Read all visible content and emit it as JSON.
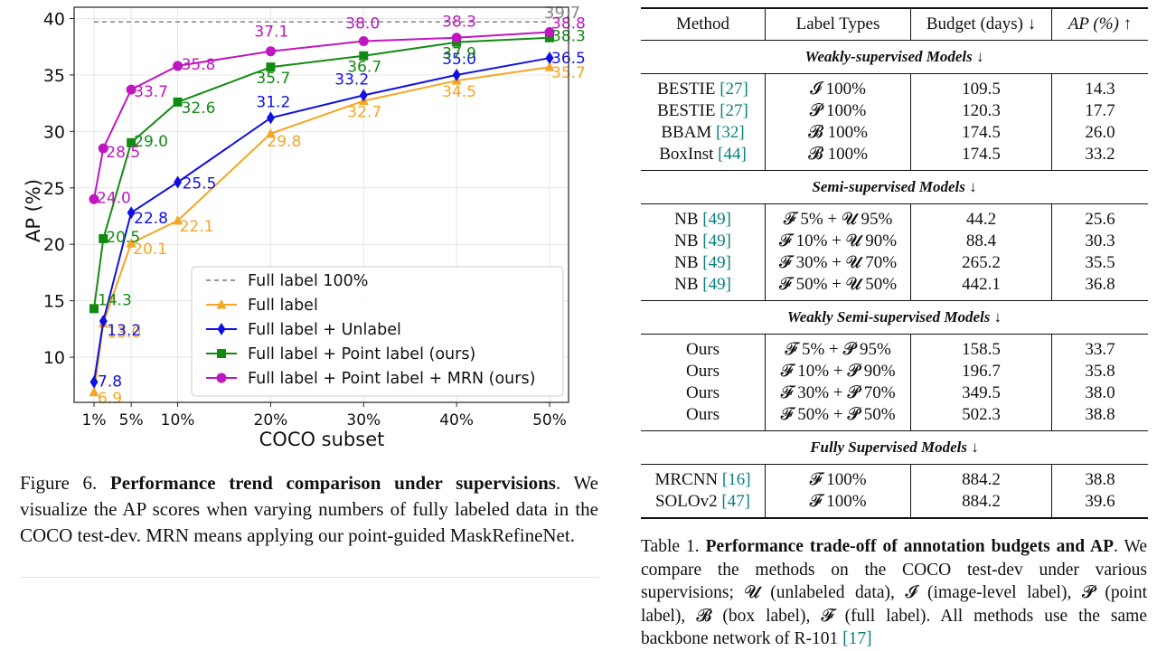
{
  "chart_data": {
    "type": "line",
    "xlabel": "COCO subset",
    "ylabel": "AP (%)",
    "x_ticks": [
      "1%",
      "5%",
      "10%",
      "20%",
      "30%",
      "40%",
      "50%"
    ],
    "x": [
      1,
      5,
      10,
      20,
      30,
      40,
      50
    ],
    "ylim": [
      6,
      41
    ],
    "y_ticks": [
      10,
      15,
      20,
      25,
      30,
      35,
      40
    ],
    "grid": true,
    "legend_position": "bottom-right",
    "reference_line": {
      "name": "Full label 100%",
      "value": 39.7,
      "label": "39.7",
      "color": "#777777"
    },
    "series": [
      {
        "name": "Full label",
        "color": "#f5a623",
        "marker": "triangle",
        "values": [
          6.9,
          20.1,
          22.1,
          29.8,
          32.7,
          34.5,
          35.7
        ],
        "labels": [
          "6.9",
          "20.1",
          "22.1",
          "29.8",
          "32.7",
          "34.5",
          "35.7"
        ]
      },
      {
        "name": "Full label + Unlabel",
        "color": "#1010e0",
        "marker": "diamond",
        "values": [
          7.8,
          22.8,
          25.5,
          31.2,
          33.2,
          35.0,
          36.5
        ],
        "labels": [
          "7.8",
          "22.8",
          "25.5",
          "31.2",
          "33.2",
          "35.0",
          "36.5"
        ]
      },
      {
        "name": "Full label + Point label (ours)",
        "color": "#128a12",
        "marker": "square",
        "values": [
          14.3,
          29.0,
          32.6,
          35.7,
          36.7,
          37.9,
          38.3
        ],
        "labels": [
          "14.3",
          "29.0",
          "32.6",
          "35.7",
          "36.7",
          "37.9",
          "38.3"
        ]
      },
      {
        "name": "Full label + Point label + MRN (ours)",
        "color": "#c016c0",
        "marker": "circle",
        "values": [
          24.0,
          33.7,
          35.8,
          37.1,
          38.0,
          38.3,
          38.8
        ],
        "labels": [
          "24.0",
          "33.7",
          "35.8",
          "37.1",
          "38.0",
          "38.3",
          "38.8"
        ]
      }
    ],
    "extra_points": [
      {
        "series_index": 0,
        "x": 2,
        "value": 13.0,
        "label": "13.0"
      },
      {
        "series_index": 1,
        "x": 2,
        "value": 13.2,
        "label": "13.2"
      },
      {
        "series_index": 2,
        "x": 2,
        "value": 20.5,
        "label": "20.5"
      },
      {
        "series_index": 3,
        "x": 2,
        "value": 28.5,
        "label": "28.5"
      }
    ]
  },
  "figure_caption": {
    "label": "Figure 6.",
    "title": "Performance trend comparison under supervisions",
    "body": ". We visualize the AP scores when varying numbers of fully labeled data in the COCO test-dev. MRN means applying our point-guided MaskRefineNet."
  },
  "table": {
    "headers": [
      "Method",
      "Label Types",
      "Budget (days) ↓",
      "AP (%) ↑"
    ],
    "sections": [
      {
        "title": "Weakly-supervised Models ↓",
        "rows": [
          {
            "method": "BESTIE",
            "cite": "[27]",
            "label": "𝓘 100%",
            "budget": "109.5",
            "ap": "14.3"
          },
          {
            "method": "BESTIE",
            "cite": "[27]",
            "label": "𝓟 100%",
            "budget": "120.3",
            "ap": "17.7"
          },
          {
            "method": "BBAM",
            "cite": "[32]",
            "label": "𝓑 100%",
            "budget": "174.5",
            "ap": "26.0"
          },
          {
            "method": "BoxInst",
            "cite": "[44]",
            "label": "𝓑 100%",
            "budget": "174.5",
            "ap": "33.2"
          }
        ]
      },
      {
        "title": "Semi-supervised Models ↓",
        "rows": [
          {
            "method": "NB",
            "cite": "[49]",
            "label": "𝓕 5% + 𝓤 95%",
            "budget": "44.2",
            "ap": "25.6"
          },
          {
            "method": "NB",
            "cite": "[49]",
            "label": "𝓕 10% + 𝓤 90%",
            "budget": "88.4",
            "ap": "30.3"
          },
          {
            "method": "NB",
            "cite": "[49]",
            "label": "𝓕 30% + 𝓤 70%",
            "budget": "265.2",
            "ap": "35.5"
          },
          {
            "method": "NB",
            "cite": "[49]",
            "label": "𝓕 50% + 𝓤 50%",
            "budget": "442.1",
            "ap": "36.8"
          }
        ]
      },
      {
        "title": "Weakly Semi-supervised Models ↓",
        "rows": [
          {
            "method": "Ours",
            "cite": "",
            "label": "𝓕 5% + 𝓟 95%",
            "budget": "158.5",
            "ap": "33.7"
          },
          {
            "method": "Ours",
            "cite": "",
            "label": "𝓕 10% + 𝓟 90%",
            "budget": "196.7",
            "ap": "35.8"
          },
          {
            "method": "Ours",
            "cite": "",
            "label": "𝓕 30% + 𝓟 70%",
            "budget": "349.5",
            "ap": "38.0"
          },
          {
            "method": "Ours",
            "cite": "",
            "label": "𝓕 50% + 𝓟 50%",
            "budget": "502.3",
            "ap": "38.8"
          }
        ]
      },
      {
        "title": "Fully Supervised Models ↓",
        "rows": [
          {
            "method": "MRCNN",
            "cite": "[16]",
            "label": "𝓕 100%",
            "budget": "884.2",
            "ap": "38.8"
          },
          {
            "method": "SOLOv2",
            "cite": "[47]",
            "label": "𝓕 100%",
            "budget": "884.2",
            "ap": "39.6"
          }
        ]
      }
    ]
  },
  "table_caption": {
    "label": "Table 1.",
    "title": "Performance trade-off of annotation budgets and AP",
    "body": ". We compare the methods on the COCO test-dev under various supervisions; 𝓤 (unlabeled data), 𝓘 (image-level label), 𝓟 (point label), 𝓑 (box label), 𝓕 (full label). All methods use the same backbone network of R-101 ",
    "cite": "[17]"
  }
}
